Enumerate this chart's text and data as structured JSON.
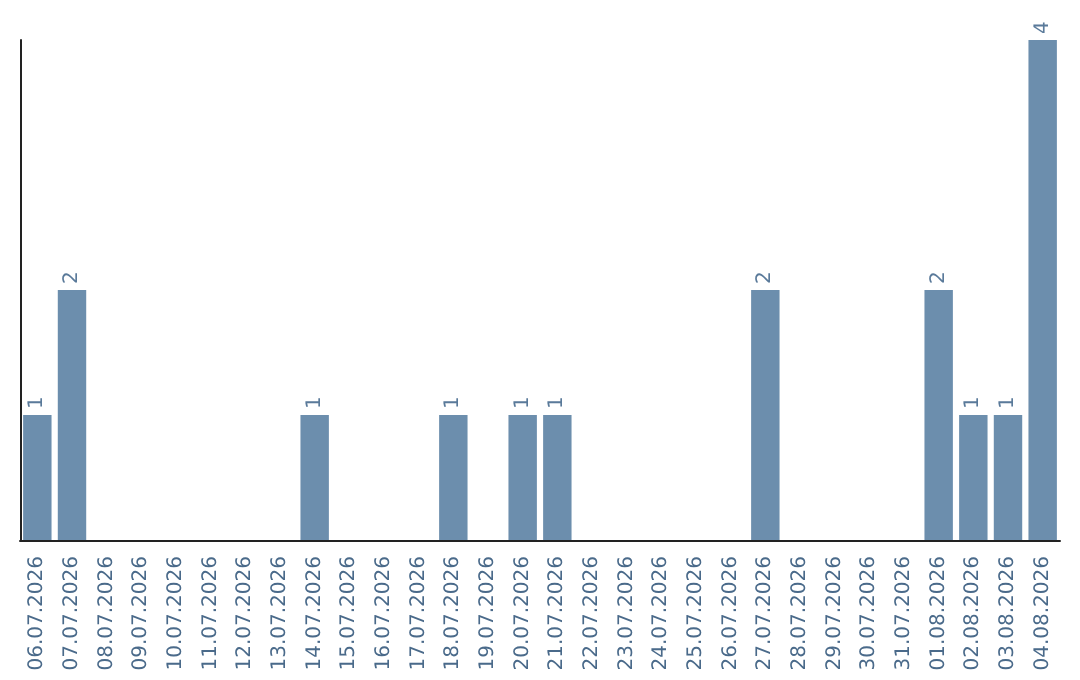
{
  "chart_data": {
    "type": "bar",
    "categories": [
      "06.07.2026",
      "07.07.2026",
      "08.07.2026",
      "09.07.2026",
      "10.07.2026",
      "11.07.2026",
      "12.07.2026",
      "13.07.2026",
      "14.07.2026",
      "15.07.2026",
      "16.07.2026",
      "17.07.2026",
      "18.07.2026",
      "19.07.2026",
      "20.07.2026",
      "21.07.2026",
      "22.07.2026",
      "23.07.2026",
      "24.07.2026",
      "25.07.2026",
      "26.07.2026",
      "27.07.2026",
      "28.07.2026",
      "29.07.2026",
      "30.07.2026",
      "31.07.2026",
      "01.08.2026",
      "02.08.2026",
      "03.08.2026",
      "04.08.2026"
    ],
    "values": [
      1,
      2,
      0,
      0,
      0,
      0,
      0,
      0,
      1,
      0,
      0,
      0,
      1,
      0,
      1,
      1,
      0,
      0,
      0,
      0,
      0,
      2,
      0,
      0,
      0,
      0,
      2,
      1,
      1,
      4
    ],
    "value_labels": [
      "1",
      "2",
      null,
      null,
      null,
      null,
      null,
      null,
      "1",
      null,
      null,
      null,
      "1",
      null,
      "1",
      "1",
      null,
      null,
      null,
      null,
      null,
      "2",
      null,
      null,
      null,
      null,
      "2",
      "1",
      "1",
      "4"
    ],
    "color": "#6c8ead",
    "tick_labels": "x"
  }
}
